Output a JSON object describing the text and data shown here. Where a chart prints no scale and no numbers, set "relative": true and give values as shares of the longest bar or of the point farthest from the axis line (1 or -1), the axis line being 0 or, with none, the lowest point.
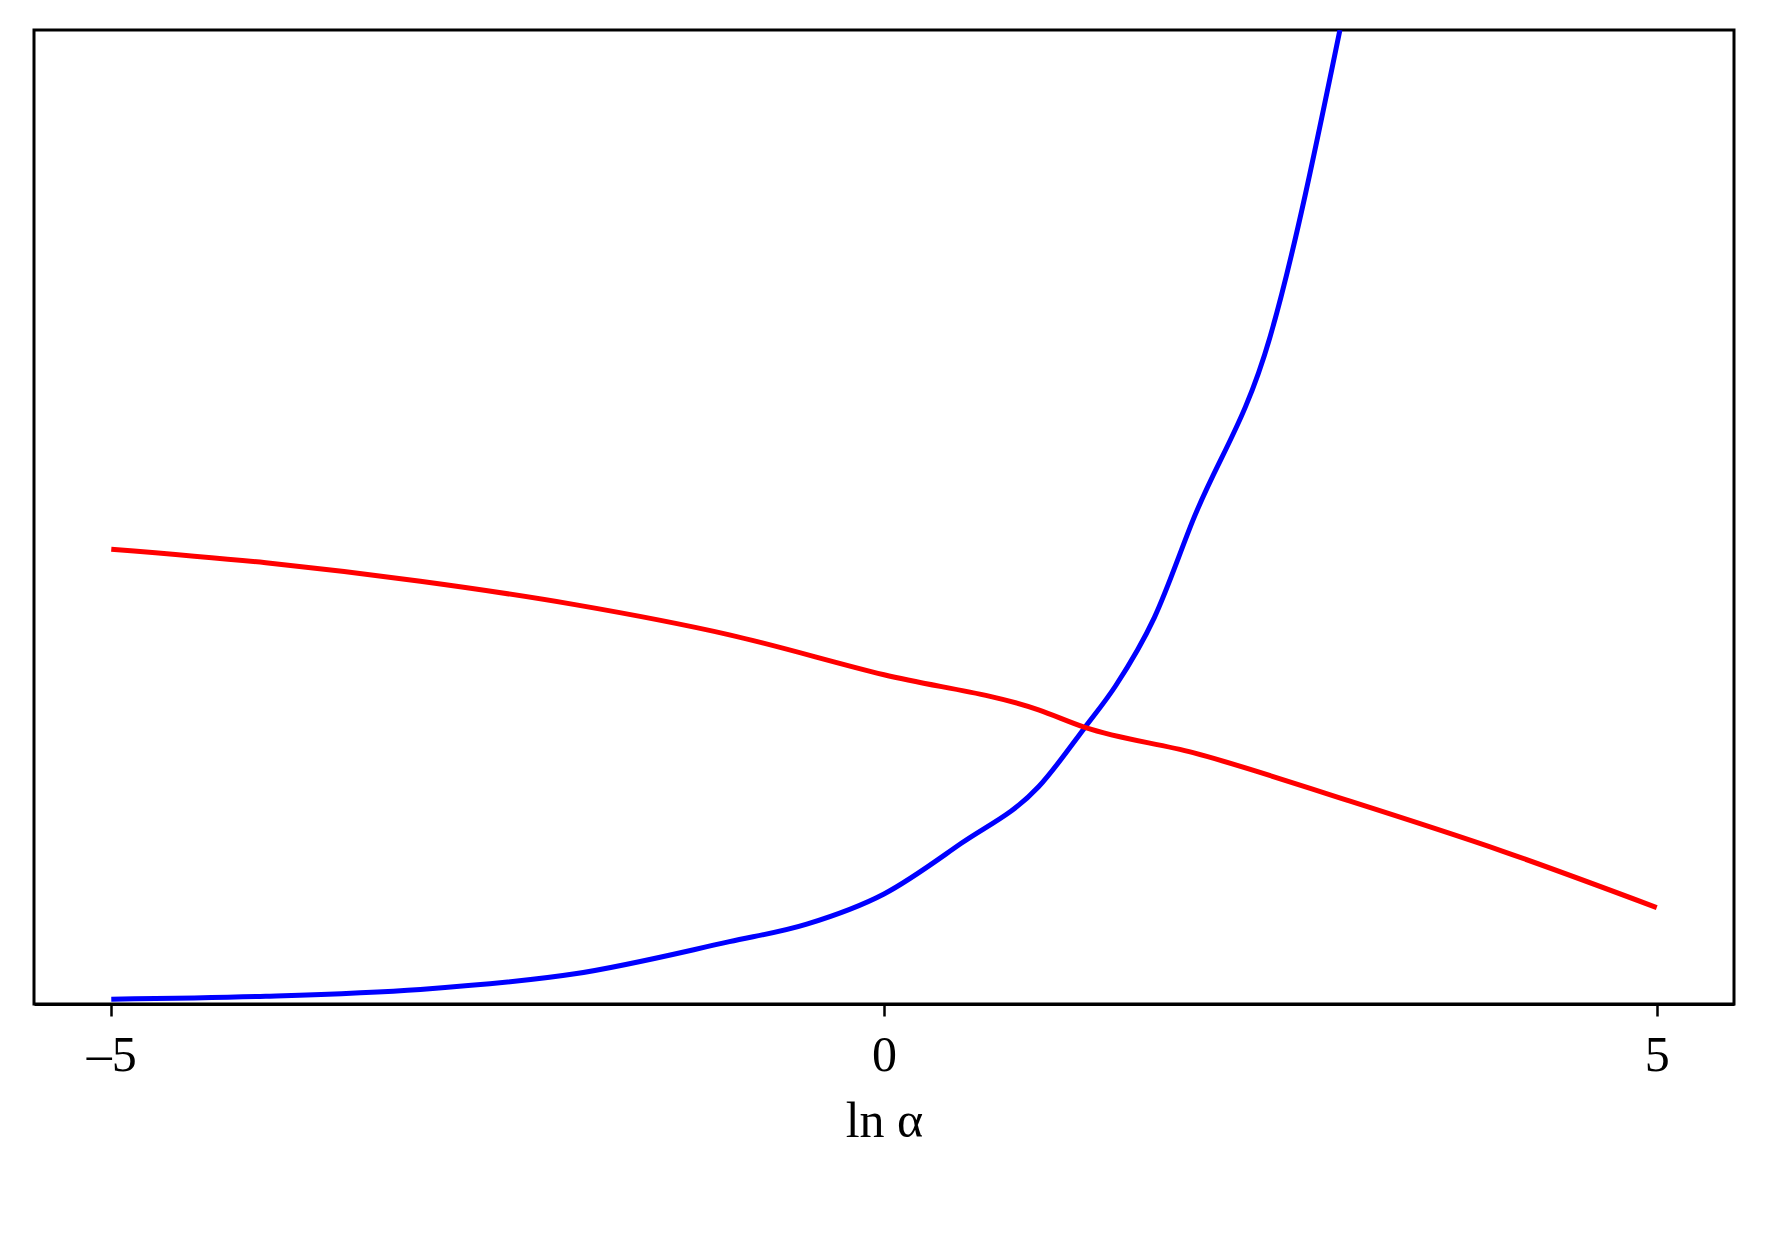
{
  "chart_data": {
    "type": "line",
    "xlabel": "ln α",
    "relative": true,
    "xlim": [
      -5.5,
      5.5
    ],
    "xticks": [
      {
        "value": -5,
        "label": "–5"
      },
      {
        "value": 0,
        "label": "0"
      },
      {
        "value": 5,
        "label": "5"
      }
    ],
    "grid": false,
    "marker": "none",
    "line_style": "solid",
    "series": [
      {
        "color": "#0000ff",
        "x": [
          -5,
          -4,
          -3,
          -2,
          -1,
          -0.5,
          0,
          0.5,
          1,
          1.3,
          1.5,
          1.75,
          2,
          2.5,
          2.95
        ],
        "values": [
          0.005,
          0.008,
          0.015,
          0.031,
          0.064,
          0.082,
          0.113,
          0.165,
          0.223,
          0.284,
          0.327,
          0.397,
          0.497,
          0.686,
          1.0
        ]
      },
      {
        "color": "#ff0000",
        "x": [
          -5,
          -4,
          -3,
          -2,
          -1,
          0,
          1,
          1.3,
          2,
          3,
          4,
          5
        ],
        "values": [
          0.467,
          0.453,
          0.434,
          0.41,
          0.379,
          0.338,
          0.302,
          0.284,
          0.258,
          0.209,
          0.157,
          0.099
        ]
      }
    ]
  }
}
